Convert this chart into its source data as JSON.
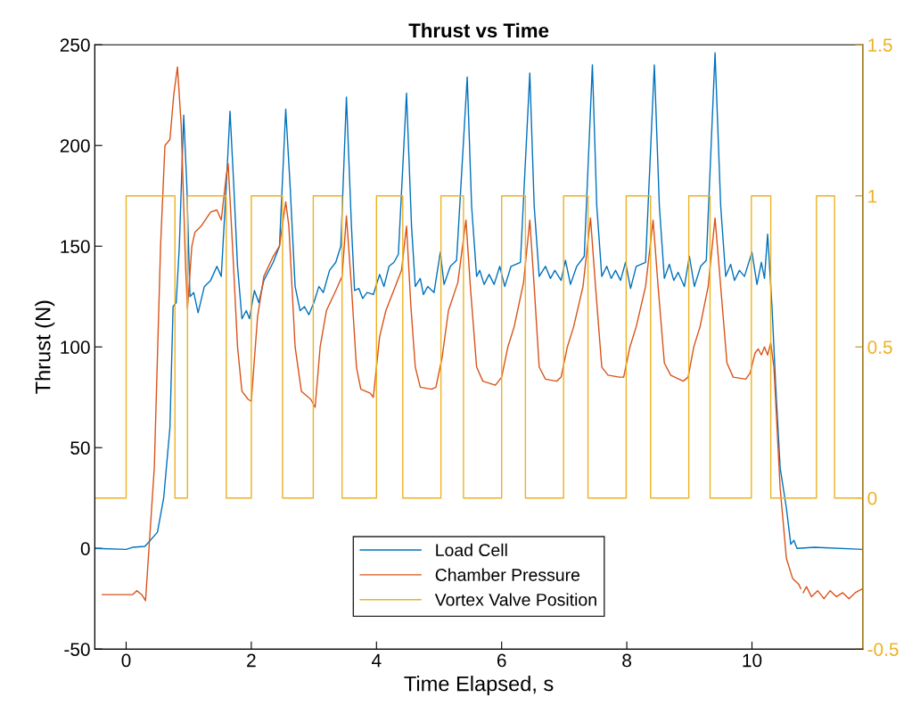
{
  "chart_data": {
    "type": "line",
    "title": "Thrust vs Time",
    "xlabel": "Time Elapsed, s",
    "ylabel": "Thrust (N)",
    "xlim": [
      -0.5,
      11.77
    ],
    "xticks": [
      0,
      2,
      4,
      6,
      8,
      10
    ],
    "ylim": [
      -50,
      250
    ],
    "yticks": [
      -50,
      0,
      50,
      100,
      150,
      200,
      250
    ],
    "y2lim": [
      -0.5,
      1.5
    ],
    "y2ticks": [
      -0.5,
      0,
      0.5,
      1,
      1.5
    ],
    "grid": false,
    "legend": "bottom",
    "marker": "none",
    "line_style": "solid",
    "series": [
      {
        "name": "Load Cell",
        "color": "#0072bd",
        "x": [
          -0.5,
          0,
          0.1,
          0.3,
          0.5,
          0.6,
          0.7,
          0.75,
          0.8,
          0.85,
          0.92,
          0.97,
          1.02,
          1.08,
          1.15,
          1.25,
          1.35,
          1.45,
          1.52,
          1.6,
          1.66,
          1.72,
          1.78,
          1.85,
          1.92,
          1.97,
          2.05,
          2.12,
          2.2,
          2.35,
          2.45,
          2.55,
          2.62,
          2.7,
          2.78,
          2.85,
          2.92,
          3.0,
          3.08,
          3.15,
          3.25,
          3.35,
          3.43,
          3.52,
          3.6,
          3.65,
          3.72,
          3.78,
          3.85,
          3.95,
          4.05,
          4.12,
          4.2,
          4.28,
          4.35,
          4.48,
          4.56,
          4.62,
          4.7,
          4.75,
          4.82,
          4.92,
          5.02,
          5.08,
          5.18,
          5.28,
          5.45,
          5.52,
          5.6,
          5.65,
          5.72,
          5.8,
          5.88,
          5.97,
          6.05,
          6.15,
          6.3,
          6.45,
          6.52,
          6.6,
          6.7,
          6.78,
          6.85,
          6.95,
          7.02,
          7.1,
          7.2,
          7.32,
          7.45,
          7.52,
          7.6,
          7.68,
          7.75,
          7.82,
          7.9,
          7.98,
          8.06,
          8.15,
          8.3,
          8.44,
          8.52,
          8.6,
          8.68,
          8.75,
          8.82,
          8.92,
          9.0,
          9.08,
          9.18,
          9.27,
          9.41,
          9.5,
          9.58,
          9.66,
          9.72,
          9.8,
          9.88,
          10.0,
          10.08,
          10.15,
          10.2,
          10.25,
          10.32,
          10.38,
          10.45,
          10.55,
          10.62,
          10.67,
          10.72,
          11.0,
          11.77
        ],
        "values": [
          0,
          -0.5,
          0.5,
          1,
          8,
          25,
          60,
          120,
          122,
          150,
          215,
          180,
          125,
          127,
          117,
          130,
          133,
          140,
          135,
          180,
          217,
          180,
          140,
          114,
          118,
          114,
          128,
          122,
          133,
          142,
          150,
          218,
          180,
          130,
          118,
          120,
          116,
          122,
          130,
          127,
          138,
          142,
          150,
          224,
          160,
          128,
          129,
          124,
          127,
          126,
          136,
          130,
          140,
          142,
          146,
          226,
          160,
          130,
          134,
          126,
          130,
          127,
          147,
          131,
          140,
          143,
          234,
          170,
          135,
          138,
          131,
          136,
          131,
          140,
          130,
          140,
          142,
          236,
          170,
          135,
          140,
          134,
          138,
          133,
          143,
          131,
          140,
          145,
          240,
          170,
          135,
          140,
          134,
          138,
          133,
          142,
          129,
          140,
          142,
          240,
          170,
          134,
          141,
          133,
          137,
          130,
          145,
          130,
          140,
          143,
          246,
          170,
          135,
          141,
          133,
          138,
          135,
          147,
          131,
          142,
          134,
          156,
          120,
          80,
          40,
          20,
          2,
          4,
          0,
          0.5,
          -0.5
        ]
      },
      {
        "name": "Chamber Pressure",
        "color": "#d95319",
        "x": [
          -0.38,
          0.1,
          0.17,
          0.25,
          0.31,
          0.45,
          0.55,
          0.62,
          0.7,
          0.76,
          0.82,
          0.88,
          0.95,
          0.98,
          1.05,
          1.1,
          1.2,
          1.35,
          1.45,
          1.52,
          1.6,
          1.63,
          1.7,
          1.78,
          1.85,
          1.95,
          2.0,
          2.1,
          2.2,
          2.35,
          2.45,
          2.55,
          2.6,
          2.7,
          2.8,
          2.95,
          3.02,
          3.1,
          3.2,
          3.35,
          3.45,
          3.52,
          3.6,
          3.68,
          3.75,
          3.9,
          3.95,
          4.05,
          4.15,
          4.3,
          4.4,
          4.48,
          4.55,
          4.62,
          4.7,
          4.88,
          4.95,
          5.05,
          5.15,
          5.3,
          5.43,
          5.5,
          5.6,
          5.7,
          5.9,
          6.0,
          6.1,
          6.2,
          6.35,
          6.45,
          6.52,
          6.6,
          6.7,
          6.88,
          6.95,
          7.05,
          7.15,
          7.3,
          7.42,
          7.5,
          7.6,
          7.7,
          7.88,
          7.95,
          8.05,
          8.15,
          8.3,
          8.42,
          8.5,
          8.6,
          8.7,
          8.9,
          8.98,
          9.07,
          9.17,
          9.3,
          9.41,
          9.5,
          9.6,
          9.7,
          9.9,
          9.97,
          10.05,
          10.1,
          10.15,
          10.2,
          10.25,
          10.3,
          10.35,
          10.45,
          10.55,
          10.65,
          10.75,
          10.78,
          10.8,
          10.82,
          10.87,
          10.95,
          11.05,
          11.15,
          11.25,
          11.35,
          11.45,
          11.55,
          11.65,
          11.77
        ],
        "values": [
          -23,
          -23,
          -21,
          -23,
          -26,
          40,
          150,
          200,
          203,
          225,
          239,
          210,
          140,
          119,
          150,
          157,
          160,
          167,
          168,
          163,
          185,
          191,
          150,
          100,
          78,
          74,
          73,
          115,
          135,
          145,
          150,
          172,
          160,
          100,
          78,
          74,
          70,
          100,
          118,
          128,
          135,
          165,
          130,
          90,
          79,
          77,
          75,
          105,
          118,
          130,
          138,
          160,
          120,
          90,
          80,
          79,
          80,
          95,
          118,
          132,
          163,
          130,
          90,
          83,
          81,
          85,
          100,
          110,
          132,
          163,
          130,
          90,
          84,
          83,
          85,
          100,
          110,
          130,
          164,
          130,
          90,
          86,
          85,
          85,
          100,
          110,
          130,
          163,
          130,
          92,
          86,
          83,
          85,
          100,
          110,
          130,
          164,
          130,
          92,
          85,
          84,
          87,
          97,
          99,
          96,
          100,
          96,
          102,
          90,
          30,
          -5,
          -15,
          -18,
          -20,
          null,
          -22,
          -19,
          -24,
          -21,
          -25,
          -21,
          -24,
          -22,
          -25,
          -22,
          -20
        ]
      },
      {
        "name": "Vortex Valve Position",
        "color": "#edb120",
        "type": "step",
        "axis": "y2",
        "x": [
          -0.5,
          0,
          0.78,
          0.98,
          1.6,
          2.0,
          2.5,
          2.99,
          3.45,
          4.0,
          4.42,
          5.03,
          5.39,
          6.0,
          6.38,
          6.99,
          7.38,
          7.99,
          8.38,
          8.99,
          9.33,
          9.99,
          10.3,
          11.03,
          11.32,
          11.77
        ],
        "values": [
          0,
          1,
          0,
          1,
          0,
          1,
          0,
          1,
          0,
          1,
          0,
          1,
          0,
          1,
          0,
          1,
          0,
          1,
          0,
          1,
          0,
          1,
          0,
          1,
          0,
          0
        ]
      }
    ]
  }
}
